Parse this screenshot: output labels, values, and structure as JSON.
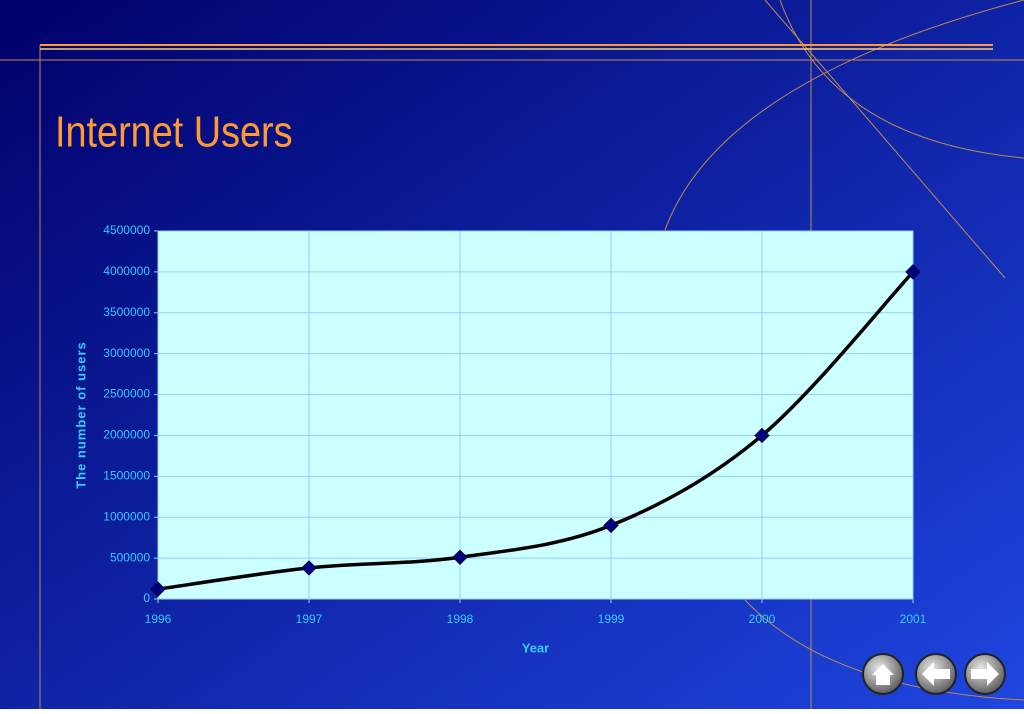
{
  "chart_data": {
    "type": "line",
    "title": "Internet Users",
    "x": [
      1996,
      1997,
      1998,
      1999,
      2000,
      2001
    ],
    "values": [
      120000,
      380000,
      510000,
      900000,
      2000000,
      4000000
    ],
    "color": "#000000",
    "marker_color": "#000080",
    "plot_background": "#ccffff",
    "xlabel": "Year",
    "ylabel": "The number of users",
    "xlim": [
      1996,
      2001
    ],
    "xticks": [
      1996,
      1997,
      1998,
      1999,
      2000,
      2001
    ],
    "ylim": [
      0,
      4500000
    ],
    "yticks": [
      0,
      500000,
      1000000,
      1500000,
      2000000,
      2500000,
      3000000,
      3500000,
      4000000,
      4500000
    ],
    "grid": true
  }
}
